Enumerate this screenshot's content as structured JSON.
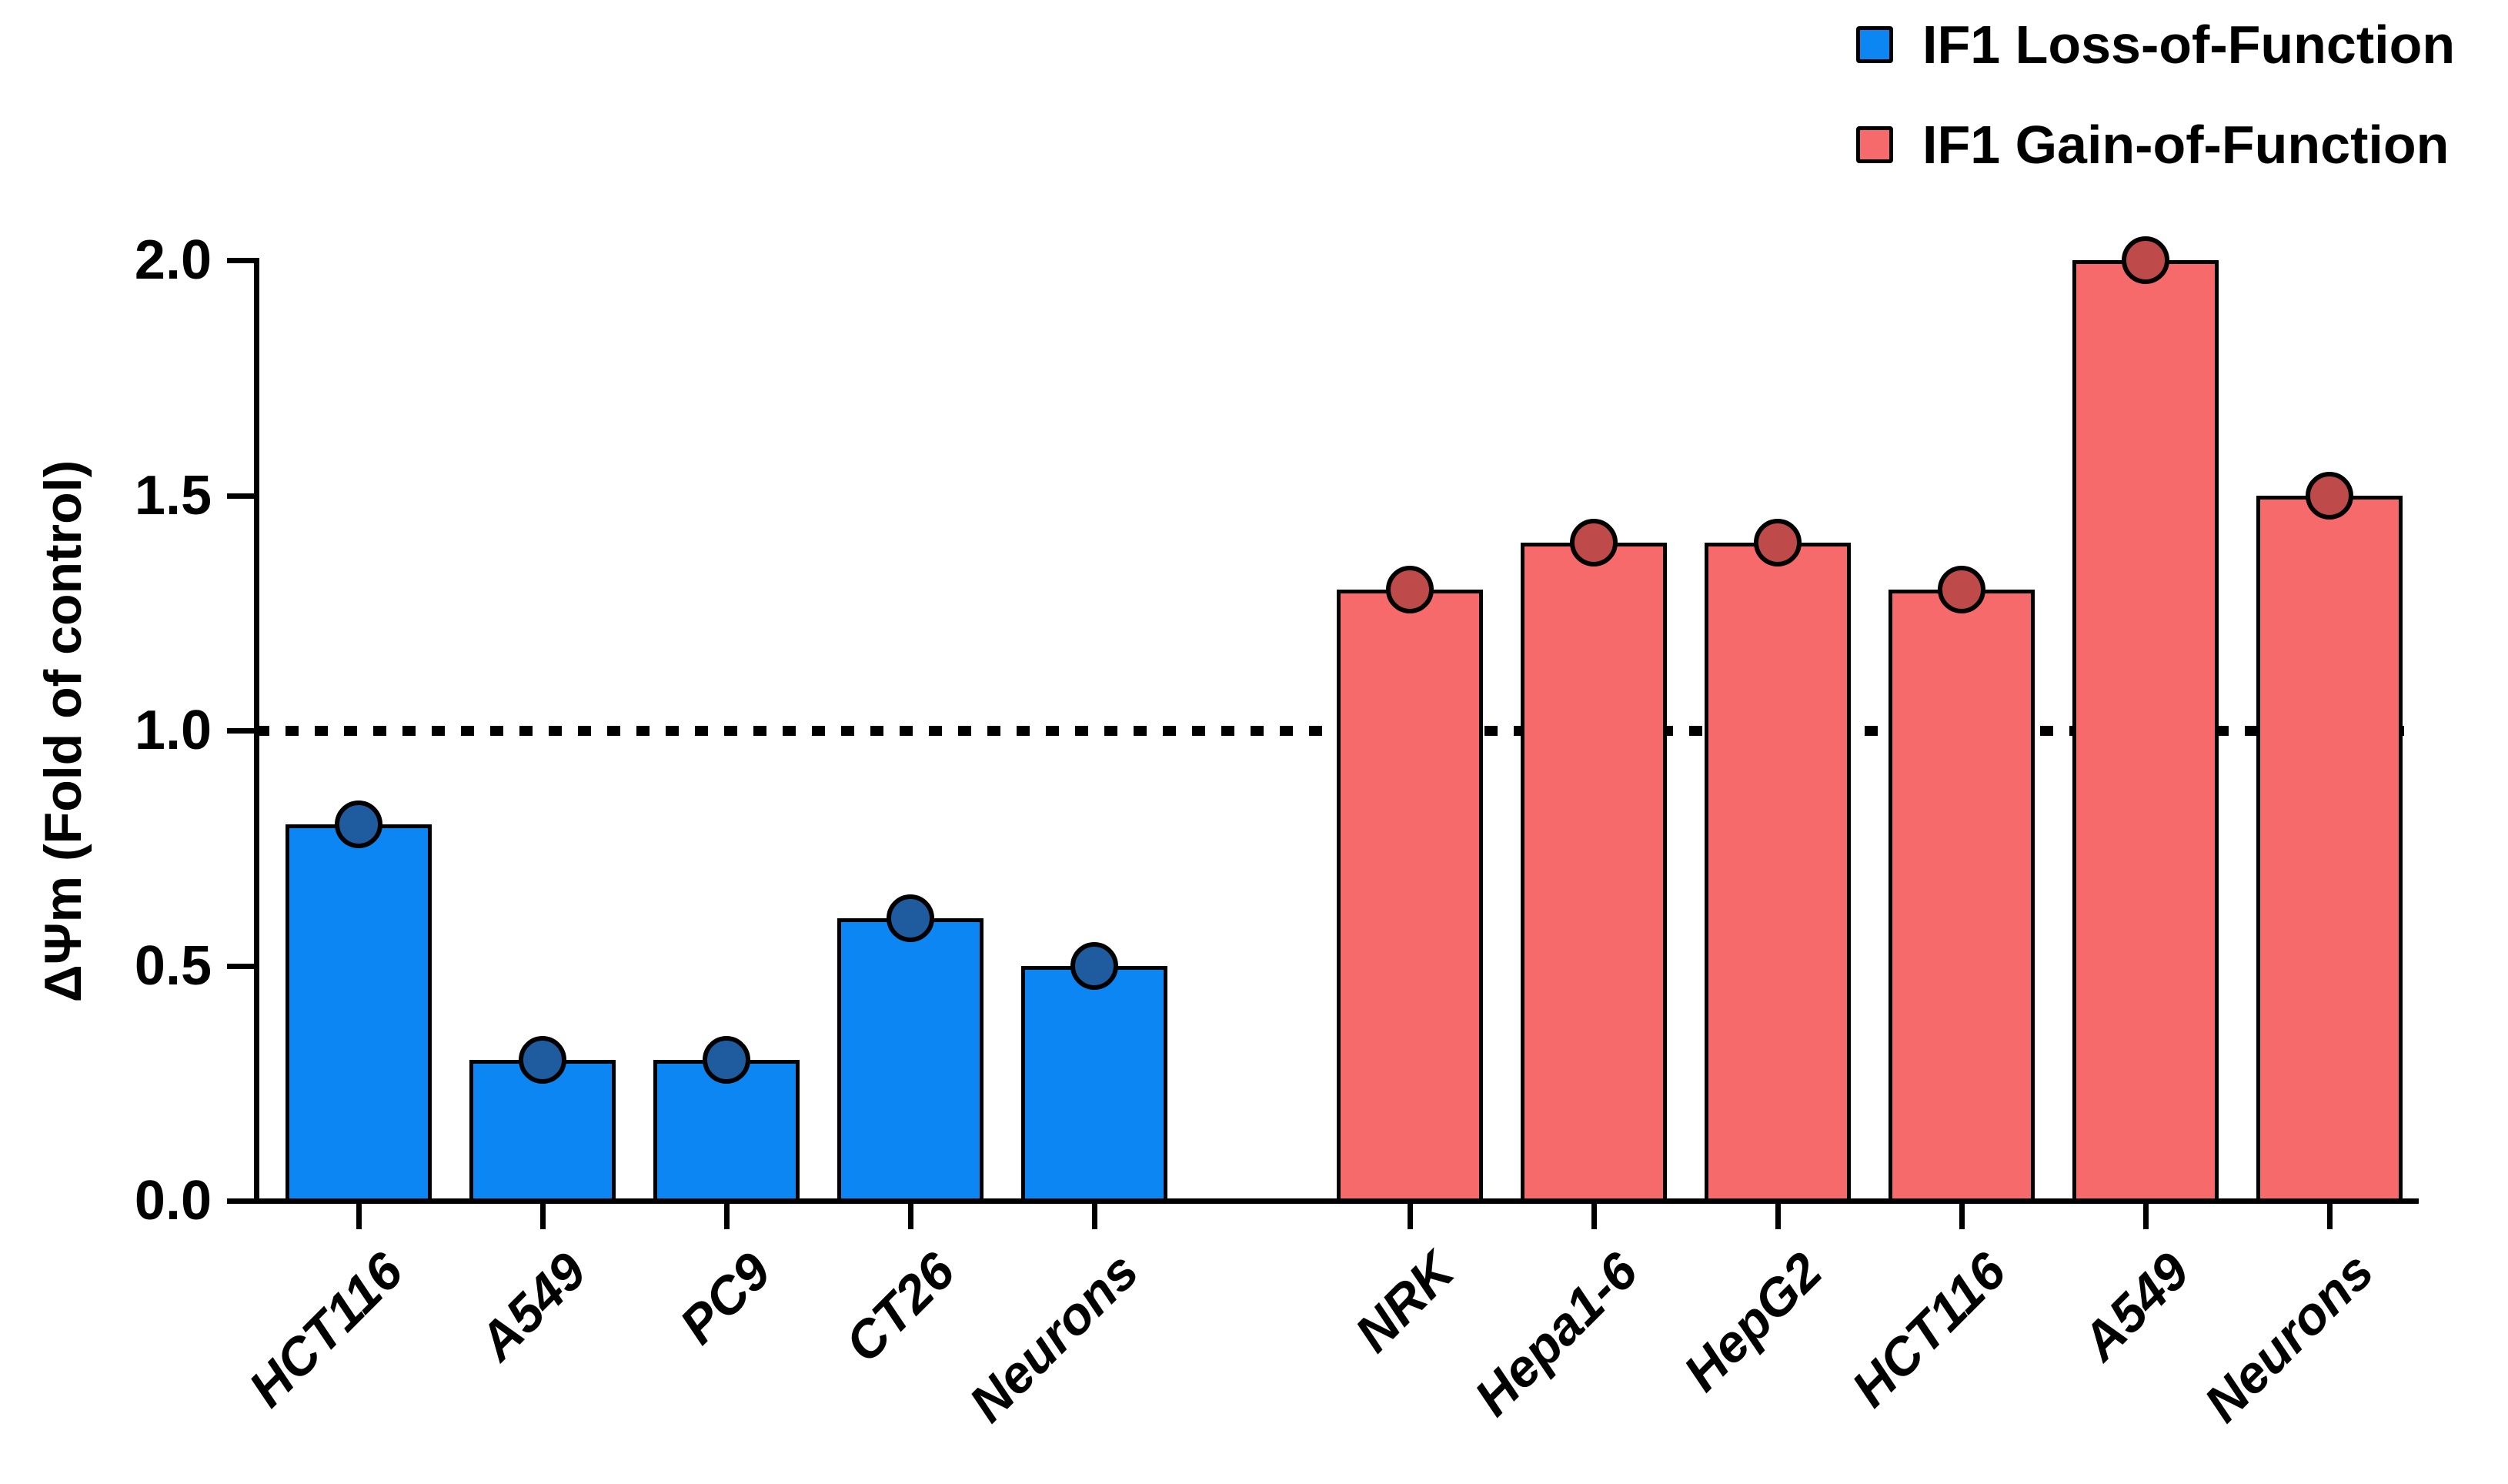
{
  "figure": {
    "background": "#ffffff",
    "axis_color": "#000000"
  },
  "legend": {
    "position": "top-right",
    "items": [
      {
        "label": "IF1 Loss-of-Function",
        "color": "#0C86F3"
      },
      {
        "label": "IF1 Gain-of-Function",
        "color": "#F76A6B"
      }
    ]
  },
  "chart_data": {
    "type": "bar",
    "title": "",
    "xlabel": "",
    "ylabel": "ΔΨm (Fold of control)",
    "ylim": [
      0,
      2
    ],
    "ytick_labels": [
      "0.0",
      "0.5",
      "1.0",
      "1.5",
      "2.0"
    ],
    "grid": false,
    "reference_line": {
      "y": 1.0,
      "style": "dotted",
      "color": "#000000"
    },
    "bar_outline_color": "#000000",
    "series": [
      {
        "name": "IF1 Loss-of-Function",
        "bar_color": "#0C86F3",
        "marker_color": "#1E5C9F",
        "categories": [
          "HCT116",
          "A549",
          "PC9",
          "CT26",
          "Neurons"
        ],
        "values": [
          0.8,
          0.3,
          0.3,
          0.6,
          0.5
        ]
      },
      {
        "name": "IF1 Gain-of-Function",
        "bar_color": "#F76A6B",
        "marker_color": "#BE4A49",
        "categories": [
          "NRK",
          "Hepa1-6",
          "HepG2",
          "HCT116",
          "A549",
          "Neurons"
        ],
        "values": [
          1.3,
          1.4,
          1.4,
          1.3,
          2.0,
          1.5
        ]
      }
    ]
  }
}
